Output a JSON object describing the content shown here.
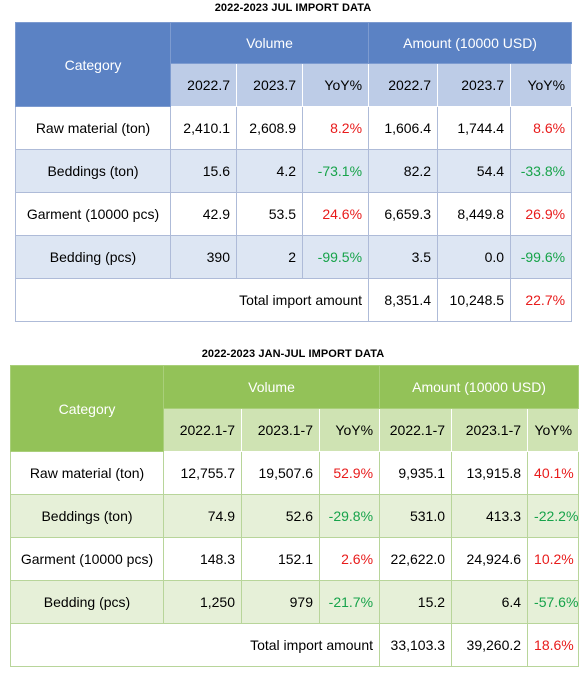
{
  "colors": {
    "table1_header": "#5b82c4",
    "table1_subheader": "#bdcce7",
    "table1_alt_row": "#dde6f3",
    "table2_header": "#93c258",
    "table2_subheader": "#cfe3b3",
    "table2_alt_row": "#e6f0d8",
    "positive": "#e81b1b",
    "negative": "#17a34a"
  },
  "table1": {
    "title": "2022-2023 JUL IMPORT DATA",
    "category_header": "Category",
    "volume_header": "Volume",
    "amount_header": "Amount (10000 USD)",
    "subheaders": [
      "2022.7",
      "2023.7",
      "YoY%",
      "2022.7",
      "2023.7",
      "YoY%"
    ],
    "rows": [
      {
        "category": "Raw material (ton)",
        "vol_prev": "2,410.1",
        "vol_curr": "2,608.9",
        "vol_yoy": "8.2%",
        "amt_prev": "1,606.4",
        "amt_curr": "1,744.4",
        "amt_yoy": "8.6%"
      },
      {
        "category": "Beddings (ton)",
        "vol_prev": "15.6",
        "vol_curr": "4.2",
        "vol_yoy": "-73.1%",
        "amt_prev": "82.2",
        "amt_curr": "54.4",
        "amt_yoy": "-33.8%"
      },
      {
        "category": "Garment (10000 pcs)",
        "vol_prev": "42.9",
        "vol_curr": "53.5",
        "vol_yoy": "24.6%",
        "amt_prev": "6,659.3",
        "amt_curr": "8,449.8",
        "amt_yoy": "26.9%"
      },
      {
        "category": "Bedding (pcs)",
        "vol_prev": "390",
        "vol_curr": "2",
        "vol_yoy": "-99.5%",
        "amt_prev": "3.5",
        "amt_curr": "0.0",
        "amt_yoy": "-99.6%"
      }
    ],
    "total": {
      "label": "Total  import amount",
      "amt_prev": "8,351.4",
      "amt_curr": "10,248.5",
      "amt_yoy": "22.7%"
    }
  },
  "table2": {
    "title": "2022-2023 JAN-JUL IMPORT DATA",
    "category_header": "Category",
    "volume_header": "Volume",
    "amount_header": "Amount (10000 USD)",
    "subheaders": [
      "2022.1-7",
      "2023.1-7",
      "YoY%",
      "2022.1-7",
      "2023.1-7",
      "YoY%"
    ],
    "rows": [
      {
        "category": "Raw material (ton)",
        "vol_prev": "12,755.7",
        "vol_curr": "19,507.6",
        "vol_yoy": "52.9%",
        "amt_prev": "9,935.1",
        "amt_curr": "13,915.8",
        "amt_yoy": "40.1%"
      },
      {
        "category": "Beddings (ton)",
        "vol_prev": "74.9",
        "vol_curr": "52.6",
        "vol_yoy": "-29.8%",
        "amt_prev": "531.0",
        "amt_curr": "413.3",
        "amt_yoy": "-22.2%"
      },
      {
        "category": "Garment (10000 pcs)",
        "vol_prev": "148.3",
        "vol_curr": "152.1",
        "vol_yoy": "2.6%",
        "amt_prev": "22,622.0",
        "amt_curr": "24,924.6",
        "amt_yoy": "10.2%"
      },
      {
        "category": "Bedding (pcs)",
        "vol_prev": "1,250",
        "vol_curr": "979",
        "vol_yoy": "-21.7%",
        "amt_prev": "15.2",
        "amt_curr": "6.4",
        "amt_yoy": "-57.6%"
      }
    ],
    "total": {
      "label": "Total import amount",
      "amt_prev": "33,103.3",
      "amt_curr": "39,260.2",
      "amt_yoy": "18.6%"
    }
  }
}
